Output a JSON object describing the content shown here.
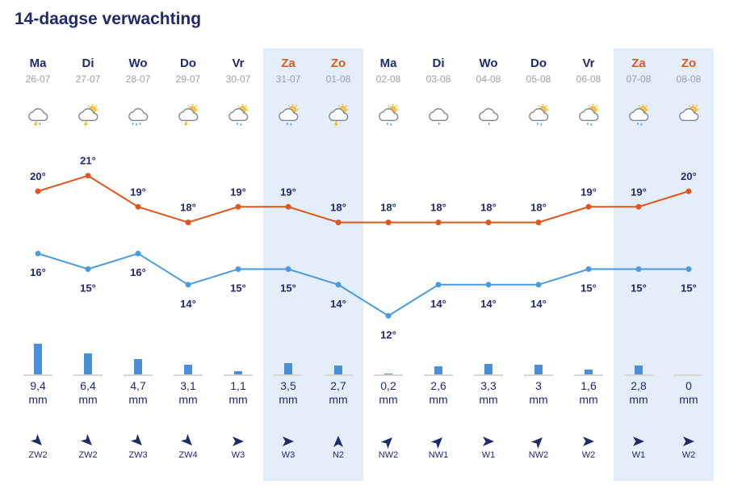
{
  "title": "14-daagse verwachting",
  "colors": {
    "max": "#e0561c",
    "min": "#4a9bdc",
    "rain": "#4a8fd8",
    "weekend": "#e3eef9",
    "text": "#1f2a6d",
    "weekend_text": "#e0561c"
  },
  "unit": "mm",
  "days": [
    {
      "day": "Ma",
      "date": "26-07",
      "weekend": false,
      "icon": "thunder-cloud-icon",
      "max": 20,
      "min": 16,
      "rain": 9.4,
      "rain_label": "9,4",
      "wind_dir": "ZW",
      "wind_label": "ZW2"
    },
    {
      "day": "Di",
      "date": "27-07",
      "weekend": false,
      "icon": "sun-thunder-cloud-icon",
      "max": 21,
      "min": 15,
      "rain": 6.4,
      "rain_label": "6,4",
      "wind_dir": "ZW",
      "wind_label": "ZW2"
    },
    {
      "day": "Wo",
      "date": "28-07",
      "weekend": false,
      "icon": "rain-cloud-icon",
      "max": 19,
      "min": 16,
      "rain": 4.7,
      "rain_label": "4,7",
      "wind_dir": "ZW",
      "wind_label": "ZW3"
    },
    {
      "day": "Do",
      "date": "29-07",
      "weekend": false,
      "icon": "sun-thunder-cloud-icon",
      "max": 18,
      "min": 14,
      "rain": 3.1,
      "rain_label": "3,1",
      "wind_dir": "ZW",
      "wind_label": "ZW4"
    },
    {
      "day": "Vr",
      "date": "30-07",
      "weekend": false,
      "icon": "sun-shower-cloud-icon",
      "max": 19,
      "min": 15,
      "rain": 1.1,
      "rain_label": "1,1",
      "wind_dir": "W",
      "wind_label": "W3"
    },
    {
      "day": "Za",
      "date": "31-07",
      "weekend": true,
      "icon": "sun-shower-cloud-icon",
      "max": 19,
      "min": 15,
      "rain": 3.5,
      "rain_label": "3,5",
      "wind_dir": "W",
      "wind_label": "W3"
    },
    {
      "day": "Zo",
      "date": "01-08",
      "weekend": true,
      "icon": "sun-thunder-cloud-icon",
      "max": 18,
      "min": 14,
      "rain": 2.7,
      "rain_label": "2,7",
      "wind_dir": "N",
      "wind_label": "N2"
    },
    {
      "day": "Ma",
      "date": "02-08",
      "weekend": false,
      "icon": "sun-shower-cloud-icon",
      "max": 18,
      "min": 12,
      "rain": 0.2,
      "rain_label": "0,2",
      "wind_dir": "NW",
      "wind_label": "NW2"
    },
    {
      "day": "Di",
      "date": "03-08",
      "weekend": false,
      "icon": "shower-cloud-icon",
      "max": 18,
      "min": 14,
      "rain": 2.6,
      "rain_label": "2,6",
      "wind_dir": "NW",
      "wind_label": "NW1"
    },
    {
      "day": "Wo",
      "date": "04-08",
      "weekend": false,
      "icon": "shower-cloud-icon",
      "max": 18,
      "min": 14,
      "rain": 3.3,
      "rain_label": "3,3",
      "wind_dir": "W",
      "wind_label": "W1"
    },
    {
      "day": "Do",
      "date": "05-08",
      "weekend": false,
      "icon": "sun-shower-cloud-icon",
      "max": 18,
      "min": 14,
      "rain": 3,
      "rain_label": "3",
      "wind_dir": "NW",
      "wind_label": "NW2"
    },
    {
      "day": "Vr",
      "date": "06-08",
      "weekend": false,
      "icon": "sun-shower-cloud-icon",
      "max": 19,
      "min": 15,
      "rain": 1.6,
      "rain_label": "1,6",
      "wind_dir": "W",
      "wind_label": "W2"
    },
    {
      "day": "Za",
      "date": "07-08",
      "weekend": true,
      "icon": "sun-shower-cloud-icon",
      "max": 19,
      "min": 15,
      "rain": 2.8,
      "rain_label": "2,8",
      "wind_dir": "W",
      "wind_label": "W1"
    },
    {
      "day": "Zo",
      "date": "08-08",
      "weekend": true,
      "icon": "sun-cloud-icon",
      "max": 20,
      "min": 15,
      "rain": 0,
      "rain_label": "0",
      "wind_dir": "W",
      "wind_label": "W2"
    }
  ]
}
